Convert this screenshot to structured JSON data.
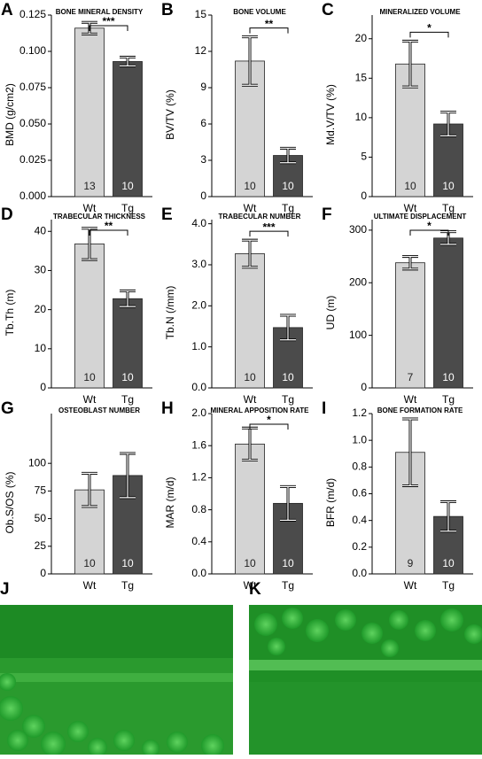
{
  "chart_data": [
    {
      "type": "bar",
      "panel": "A",
      "title": "BONE MINERAL DENSITY",
      "y_label": "BMD (g/cm2)",
      "categories": [
        "Wt",
        "Tg"
      ],
      "values": [
        0.116,
        0.093
      ],
      "errors": [
        0.004,
        0.003
      ],
      "n": [
        13,
        10
      ],
      "significance": "***",
      "colors": [
        "#d4d4d4",
        "#4b4b4b"
      ],
      "ylim": [
        0,
        0.125
      ],
      "yticks": [
        {
          "value": 0,
          "label": "0.000"
        },
        {
          "value": 0.025,
          "label": "0.025"
        },
        {
          "value": 0.05,
          "label": "0.050"
        },
        {
          "value": 0.075,
          "label": "0.075"
        },
        {
          "value": 0.1,
          "label": "0.100"
        },
        {
          "value": 0.125,
          "label": "0.125"
        }
      ]
    },
    {
      "type": "bar",
      "panel": "B",
      "title": "BONE VOLUME",
      "y_label": "BV/TV (%)",
      "categories": [
        "Wt",
        "Tg"
      ],
      "values": [
        11.2,
        3.4
      ],
      "errors": [
        2.0,
        0.6
      ],
      "n": [
        10,
        10
      ],
      "significance": "**",
      "colors": [
        "#d4d4d4",
        "#4b4b4b"
      ],
      "ylim": [
        0,
        15
      ],
      "yticks": [
        0,
        3,
        6,
        9,
        12,
        15
      ]
    },
    {
      "type": "bar",
      "panel": "C",
      "title": "MINERALIZED VOLUME",
      "y_label": "Md.V/TV (%)",
      "categories": [
        "Wt",
        "Tg"
      ],
      "values": [
        16.8,
        9.2
      ],
      "errors": [
        2.9,
        1.5
      ],
      "n": [
        10,
        10
      ],
      "significance": "*",
      "colors": [
        "#d4d4d4",
        "#4b4b4b"
      ],
      "ylim": [
        0,
        23
      ],
      "yticks": [
        0,
        5,
        10,
        15,
        20
      ]
    },
    {
      "type": "bar",
      "panel": "D",
      "title": "TRABECULAR THICKNESS",
      "y_label": "Tb.Th (m)",
      "categories": [
        "Wt",
        "Tg"
      ],
      "values": [
        36.8,
        22.8
      ],
      "errors": [
        4,
        2
      ],
      "n": [
        10,
        10
      ],
      "significance": "**",
      "colors": [
        "#d4d4d4",
        "#4b4b4b"
      ],
      "ylim": [
        0,
        43
      ],
      "yticks": [
        0,
        10,
        20,
        30,
        40
      ]
    },
    {
      "type": "bar",
      "panel": "E",
      "title": "TRABECULAR NUMBER",
      "y_label": "Tb.N (/mm)",
      "categories": [
        "Wt",
        "Tg"
      ],
      "values": [
        3.27,
        1.47
      ],
      "errors": [
        0.33,
        0.3
      ],
      "n": [
        10,
        10
      ],
      "significance": "***",
      "colors": [
        "#d4d4d4",
        "#4b4b4b"
      ],
      "ylim": [
        0,
        4.1
      ],
      "yticks": [
        {
          "value": 0,
          "label": "0.0"
        },
        {
          "value": 1,
          "label": "1.0"
        },
        {
          "value": 2,
          "label": "2.0"
        },
        {
          "value": 3,
          "label": "3.0"
        },
        {
          "value": 4,
          "label": "4.0"
        }
      ]
    },
    {
      "type": "bar",
      "panel": "F",
      "title": "ULTIMATE DISPLACEMENT",
      "y_label": "UD (m)",
      "categories": [
        "Wt",
        "Tg"
      ],
      "values": [
        238,
        285
      ],
      "errors": [
        12,
        12
      ],
      "n": [
        7,
        10
      ],
      "significance": "*",
      "colors": [
        "#d4d4d4",
        "#4b4b4b"
      ],
      "ylim": [
        0,
        320
      ],
      "yticks": [
        0,
        100,
        200,
        300
      ]
    },
    {
      "type": "bar",
      "panel": "G",
      "title": "OSTEOBLAST NUMBER",
      "y_label": "Ob.S/OS  (%)",
      "categories": [
        "Wt",
        "Tg"
      ],
      "values": [
        76,
        89
      ],
      "errors": [
        15,
        20
      ],
      "n": [
        10,
        10
      ],
      "colors": [
        "#d4d4d4",
        "#4b4b4b"
      ],
      "ylim": [
        0,
        145
      ],
      "yticks": [
        0,
        25,
        50,
        75,
        100
      ]
    },
    {
      "type": "bar",
      "panel": "H",
      "title": "MINERAL APPOSITION RATE",
      "y_label": "MAR (m/d)",
      "categories": [
        "Wt",
        "Tg"
      ],
      "values": [
        1.62,
        0.88
      ],
      "errors": [
        0.2,
        0.21
      ],
      "n": [
        10,
        10
      ],
      "significance": "*",
      "colors": [
        "#d4d4d4",
        "#4b4b4b"
      ],
      "ylim": [
        0,
        2.0
      ],
      "yticks": [
        {
          "value": 0,
          "label": "0.0"
        },
        {
          "value": 0.4,
          "label": "0.4"
        },
        {
          "value": 0.8,
          "label": "0.8"
        },
        {
          "value": 1.2,
          "label": "1.2"
        },
        {
          "value": 1.6,
          "label": "1.6"
        },
        {
          "value": 2,
          "label": "2.0"
        }
      ]
    },
    {
      "type": "bar",
      "panel": "I",
      "title": "BONE FORMATION RATE",
      "y_label": "BFR (m/d)",
      "categories": [
        "Wt",
        "Tg"
      ],
      "values": [
        0.91,
        0.43
      ],
      "errors": [
        0.25,
        0.11
      ],
      "n": [
        9,
        10
      ],
      "colors": [
        "#d4d4d4",
        "#4b4b4b"
      ],
      "ylim": [
        0,
        1.2
      ],
      "yticks": [
        {
          "value": 0,
          "label": "0.0"
        },
        {
          "value": 0.2,
          "label": "0.2"
        },
        {
          "value": 0.4,
          "label": "0.4"
        },
        {
          "value": 0.6,
          "label": "0.6"
        },
        {
          "value": 0.8,
          "label": "0.8"
        },
        {
          "value": 1,
          "label": "1.0"
        },
        {
          "value": 1.2,
          "label": "1.2"
        }
      ]
    }
  ],
  "images": [
    {
      "panel": "J"
    },
    {
      "panel": "K"
    }
  ]
}
